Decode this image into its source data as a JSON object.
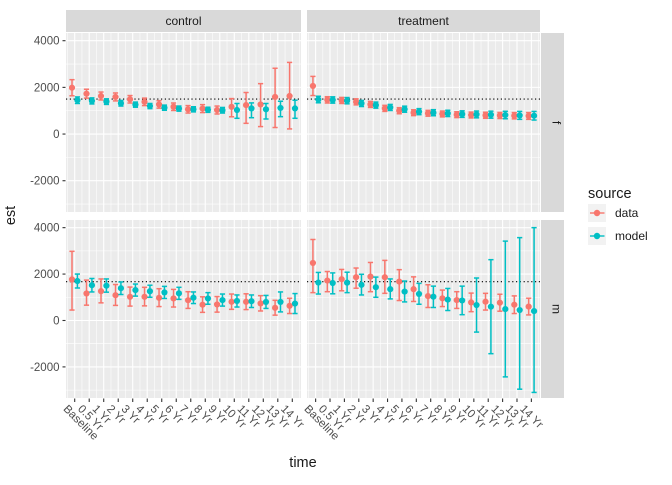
{
  "figure": {
    "x_axis_title": "time",
    "y_axis_title": "est",
    "legend": {
      "title": "source",
      "entries": [
        {
          "label": "data"
        },
        {
          "label": "model"
        }
      ]
    }
  },
  "colors": {
    "data": "#F8766D",
    "model": "#00BFC4",
    "panel_bg": "#EBEBEB",
    "strip_bg": "#D9D9D9",
    "grid": "#FFFFFF",
    "axis_text": "#4D4D4D",
    "tick_mark": "#333333",
    "text": "#1A1A1A",
    "legend_key_bg": "#F2F2F2",
    "hline": "#000000"
  },
  "chart_data": {
    "type": "scatter",
    "subtype": "pointrange-with-errorbars",
    "title": "",
    "xlabel": "time",
    "ylabel": "est",
    "facet_cols": [
      "control",
      "treatment"
    ],
    "facet_rows": [
      "f",
      "m"
    ],
    "categories": [
      "Baseline",
      "0.5 Yr",
      "1 Yr",
      "2 Yr",
      "3 Yr",
      "4 Yr",
      "5 Yr",
      "6 Yr",
      "7 Yr",
      "8 Yr",
      "9 Yr",
      "10 Yr",
      "11 Yr",
      "12 Yr",
      "13 Yr",
      "14 Yr"
    ],
    "series_names": [
      "data",
      "model"
    ],
    "legend_position": "right",
    "grid": true,
    "y_ticks": [
      4000,
      2000,
      0,
      -2000
    ],
    "ylim": [
      -3340,
      4330
    ],
    "hlines": [
      {
        "row": "f",
        "value": 1500,
        "style": "dotted"
      },
      {
        "row": "m",
        "value": 1670,
        "style": "dotted"
      }
    ],
    "facets": [
      {
        "col": "control",
        "row": "f",
        "series": [
          {
            "name": "data",
            "est": [
              1985,
              1730,
              1630,
              1590,
              1490,
              1380,
              1270,
              1170,
              1060,
              1090,
              1030,
              1165,
              1240,
              1270,
              1590,
              1630
            ],
            "lo": [
              1640,
              1540,
              1460,
              1420,
              1330,
              1220,
              1110,
              1010,
              900,
              920,
              860,
              740,
              460,
              320,
              280,
              220
            ],
            "hi": [
              2330,
              1920,
              1800,
              1760,
              1650,
              1540,
              1430,
              1330,
              1220,
              1260,
              1200,
              1520,
              1780,
              2160,
              2820,
              3070
            ]
          },
          {
            "name": "model",
            "est": [
              1450,
              1420,
              1390,
              1320,
              1260,
              1200,
              1130,
              1090,
              1060,
              1040,
              1020,
              1030,
              1100,
              1060,
              1120,
              1100
            ],
            "lo": [
              1310,
              1290,
              1270,
              1200,
              1150,
              1090,
              1020,
              980,
              950,
              930,
              900,
              675,
              700,
              645,
              745,
              675
            ],
            "hi": [
              1590,
              1550,
              1510,
              1440,
              1370,
              1310,
              1240,
              1200,
              1170,
              1150,
              1140,
              1310,
              1335,
              1310,
              1405,
              1450
            ]
          }
        ]
      },
      {
        "col": "treatment",
        "row": "f",
        "series": [
          {
            "name": "data",
            "est": [
              2060,
              1465,
              1440,
              1380,
              1270,
              1100,
              1000,
              915,
              890,
              860,
              830,
              815,
              805,
              795,
              785,
              775
            ],
            "lo": [
              1650,
              1330,
              1310,
              1250,
              1140,
              970,
              870,
              790,
              765,
              735,
              705,
              690,
              675,
              665,
              650,
              630
            ],
            "hi": [
              2470,
              1600,
              1570,
              1510,
              1400,
              1230,
              1130,
              1040,
              1015,
              985,
              955,
              940,
              935,
              925,
              920,
              920
            ]
          },
          {
            "name": "model",
            "est": [
              1480,
              1460,
              1430,
              1310,
              1240,
              1140,
              1065,
              960,
              915,
              885,
              855,
              840,
              830,
              815,
              800,
              785
            ],
            "lo": [
              1340,
              1325,
              1295,
              1180,
              1110,
              1010,
              935,
              830,
              785,
              750,
              715,
              695,
              680,
              655,
              630,
              600
            ],
            "hi": [
              1620,
              1595,
              1565,
              1440,
              1370,
              1270,
              1195,
              1090,
              1045,
              1020,
              995,
              985,
              980,
              975,
              970,
              970
            ]
          }
        ]
      },
      {
        "col": "control",
        "row": "m",
        "series": [
          {
            "name": "data",
            "est": [
              1770,
              1165,
              1265,
              1090,
              1020,
              1020,
              975,
              950,
              875,
              680,
              690,
              805,
              805,
              735,
              545,
              630
            ],
            "lo": [
              450,
              660,
              760,
              650,
              620,
              630,
              600,
              580,
              520,
              350,
              360,
              480,
              470,
              410,
              230,
              300
            ],
            "hi": [
              2980,
              1740,
              1790,
              1550,
              1440,
              1430,
              1370,
              1340,
              1240,
              1020,
              1030,
              1140,
              1150,
              1070,
              870,
              960
            ]
          },
          {
            "name": "model",
            "est": [
              1700,
              1520,
              1500,
              1390,
              1310,
              1260,
              1210,
              1170,
              980,
              950,
              880,
              840,
              830,
              800,
              800,
              730
            ],
            "lo": [
              1400,
              1230,
              1220,
              1120,
              1050,
              1000,
              950,
              910,
              730,
              700,
              620,
              580,
              560,
              520,
              370,
              300
            ],
            "hi": [
              2000,
              1810,
              1790,
              1660,
              1570,
              1520,
              1470,
              1430,
              1230,
              1200,
              1140,
              1100,
              1100,
              1080,
              1230,
              1160
            ]
          }
        ]
      },
      {
        "col": "treatment",
        "row": "m",
        "series": [
          {
            "name": "data",
            "est": [
              2480,
              1720,
              1780,
              1865,
              1890,
              1865,
              1675,
              1350,
              1050,
              955,
              880,
              780,
              810,
              765,
              680,
              600
            ],
            "lo": [
              1200,
              1240,
              1280,
              1390,
              1240,
              1170,
              860,
              820,
              560,
              600,
              520,
              380,
              450,
              400,
              300,
              240
            ],
            "hi": [
              3490,
              2110,
              2200,
              2260,
              2500,
              2590,
              2190,
              1880,
              1540,
              1310,
              1240,
              1180,
              1170,
              1130,
              1060,
              960
            ]
          },
          {
            "name": "model",
            "est": [
              1635,
              1615,
              1630,
              1535,
              1435,
              1350,
              1245,
              1145,
              1025,
              900,
              865,
              665,
              595,
              490,
              450,
              405
            ],
            "lo": [
              1140,
              1150,
              1200,
              1100,
              1000,
              930,
              800,
              700,
              560,
              430,
              250,
              -500,
              -1430,
              -2430,
              -2960,
              -3100
            ],
            "hi": [
              2070,
              2050,
              2080,
              1990,
              1870,
              1790,
              1700,
              1600,
              1480,
              1380,
              1480,
              1830,
              2620,
              3420,
              3570,
              4000
            ]
          }
        ]
      }
    ]
  }
}
